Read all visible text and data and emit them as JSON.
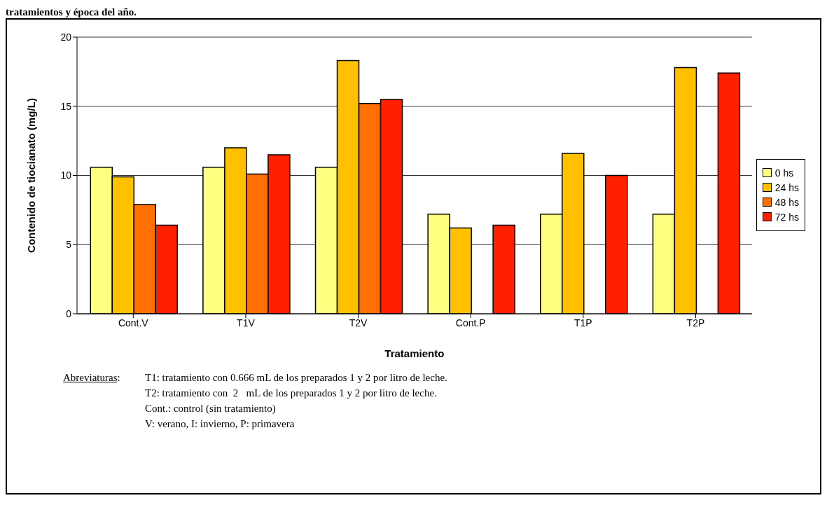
{
  "chart_data": {
    "type": "bar",
    "subtitle": "tratamientos y época del año.",
    "xlabel": "Tratamiento",
    "ylabel": "Contenido de tiocianato (mg/L)",
    "categories": [
      "Cont.V",
      "T1V",
      "T2V",
      "Cont.P",
      "T1P",
      "T2P"
    ],
    "series": [
      {
        "name": "0 hs",
        "color": "#ffff80",
        "values": [
          10.6,
          10.6,
          10.6,
          7.2,
          7.2,
          7.2
        ]
      },
      {
        "name": "24 hs",
        "color": "#ffc000",
        "values": [
          9.9,
          12.0,
          18.3,
          6.2,
          11.6,
          17.8
        ]
      },
      {
        "name": "48 hs",
        "color": "#ff7000",
        "values": [
          7.9,
          10.1,
          15.2,
          null,
          null,
          null
        ]
      },
      {
        "name": "72 hs",
        "color": "#ff2000",
        "values": [
          6.4,
          11.5,
          15.5,
          6.4,
          10.0,
          17.4
        ]
      }
    ],
    "ylim": [
      0,
      20
    ],
    "yticks": [
      0,
      5,
      10,
      15,
      20
    ],
    "grid": "y",
    "legend": "right",
    "annotations": [
      "Abreviaturas: T1: tratamiento con 0.666 mL de los preparados 1 y 2 por litro de leche.",
      "T2: tratamiento con  2   mL de los preparados 1 y 2 por litro de leche.",
      "Cont.: control (sin tratamiento)",
      "V: verano, I: invierno, P: primavera"
    ]
  }
}
